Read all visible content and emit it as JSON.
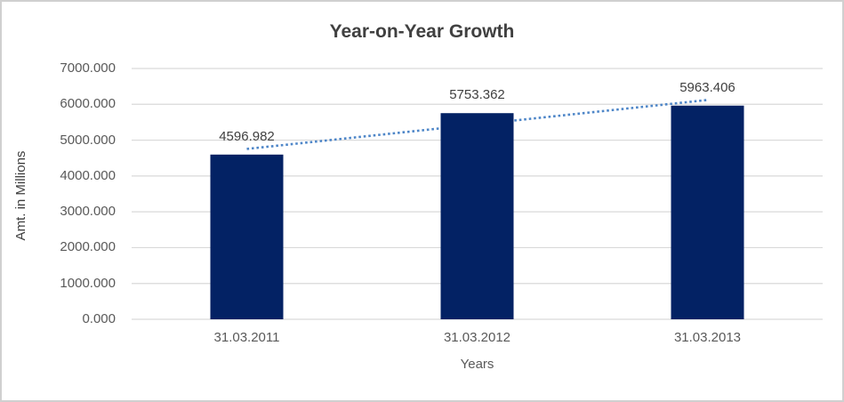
{
  "window": {
    "background": "#ffffff",
    "border_color": "#d0d0d0"
  },
  "chart_data": {
    "type": "bar",
    "title": "Year-on-Year Growth",
    "xlabel": "Years",
    "ylabel": "Amt. in Millions",
    "categories": [
      "31.03.2011",
      "31.03.2012",
      "31.03.2013"
    ],
    "values": [
      4596.982,
      5753.362,
      5963.406
    ],
    "value_labels": [
      "4596.982",
      "5753.362",
      "5963.406"
    ],
    "ylim": [
      0,
      7000
    ],
    "ytick_step": 1000,
    "ytick_labels": [
      "0.000",
      "1000.000",
      "2000.000",
      "3000.000",
      "4000.000",
      "5000.000",
      "6000.000",
      "7000.000"
    ],
    "grid": true,
    "legend_position": "none",
    "trendline": {
      "type": "linear",
      "style": "dotted"
    },
    "colors": {
      "bar": "#032264",
      "trendline": "#4e86c8",
      "gridline": "#d9d9d9",
      "title_text": "#404040",
      "axis_text": "#595959",
      "value_label_text": "#404040"
    }
  }
}
